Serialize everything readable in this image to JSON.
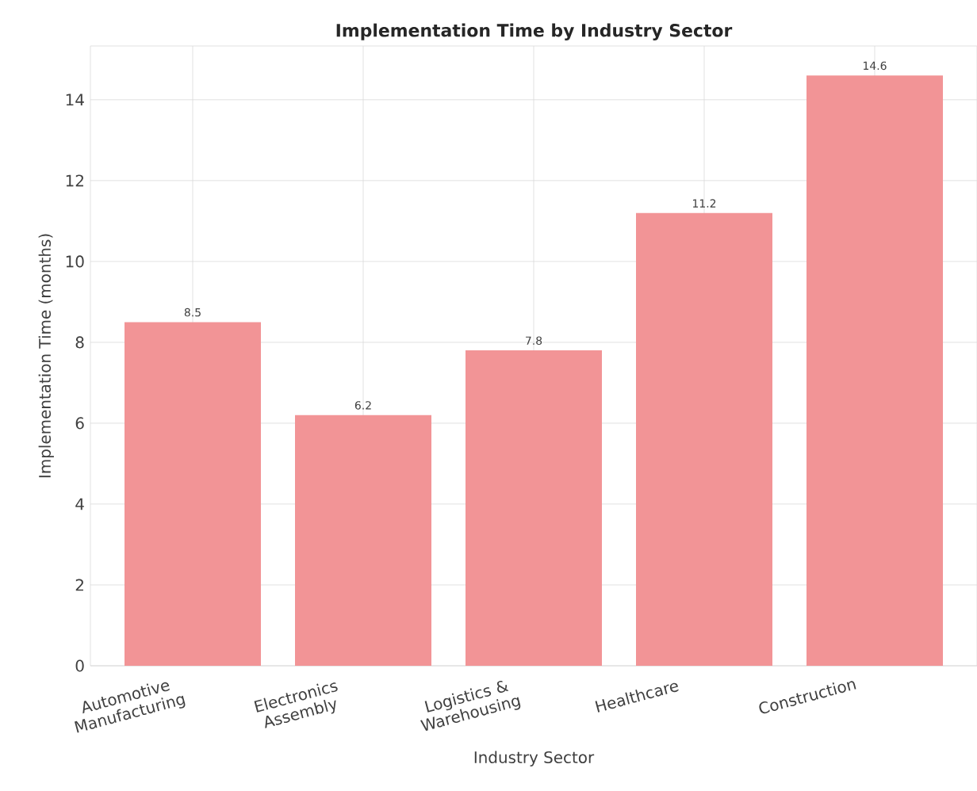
{
  "chart_data": {
    "type": "bar",
    "title": "Implementation Time by Industry Sector",
    "xlabel": "Industry Sector",
    "ylabel": "Implementation Time (months)",
    "categories": [
      "Automotive Manufacturing",
      "Electronics Assembly",
      "Logistics & Warehousing",
      "Healthcare",
      "Construction"
    ],
    "values": [
      8.5,
      6.2,
      7.8,
      11.2,
      14.6
    ],
    "color": "#f29496",
    "ylim": [
      0,
      15.33
    ],
    "yticks": [
      0,
      2,
      4,
      6,
      8,
      10,
      12,
      14
    ],
    "grid": true,
    "data_labels": true
  }
}
